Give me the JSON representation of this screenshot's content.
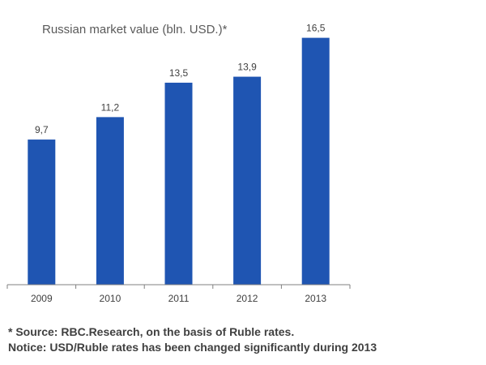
{
  "chart_data": {
    "type": "bar",
    "title": "Russian market value (bln. USD.)*",
    "categories": [
      "2009",
      "2010",
      "2011",
      "2012",
      "2013"
    ],
    "values": [
      9.7,
      11.2,
      13.5,
      13.9,
      16.5
    ],
    "value_labels": [
      "9,7",
      "11,2",
      "13,5",
      "13,9",
      "16,5"
    ],
    "xlabel": "",
    "ylabel": "",
    "ylim": [
      0,
      17.4
    ],
    "grid": false,
    "legend": "none",
    "bar_color": "#1f55b2",
    "axis_color": "#808080"
  },
  "footnotes": {
    "source": "* Source: RBC.Research, on the basis of Ruble rates.",
    "notice": "Notice: USD/Ruble rates has been changed significantly during 2013"
  }
}
